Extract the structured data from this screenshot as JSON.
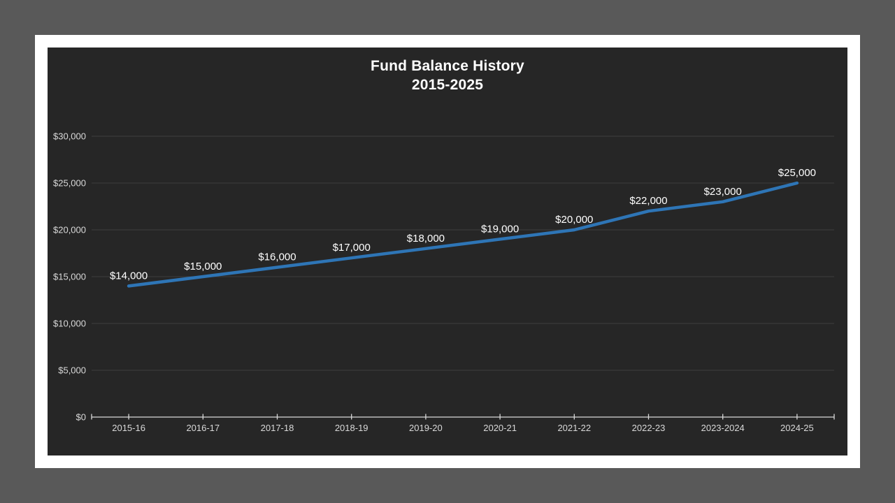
{
  "slide": {
    "canvas_color": "#595959",
    "page_color": "#ffffff",
    "chart_background": "#262626"
  },
  "chart": {
    "title_line1": "Fund Balance History",
    "title_line2": "2015-2025",
    "title_color": "#ffffff",
    "line_color": "#2e75b6",
    "gridline_color": "#3d3d3d",
    "axis_color": "#d9d9d9",
    "axis_label_color": "#d9d9d9",
    "data_label_color": "#ffffff"
  },
  "chart_data": {
    "type": "line",
    "title": "Fund Balance History 2015-2025",
    "categories": [
      "2015-16",
      "2016-17",
      "2017-18",
      "2018-19",
      "2019-20",
      "2020-21",
      "2021-22",
      "2022-23",
      "2023-2024",
      "2024-25"
    ],
    "values": [
      14000,
      15000,
      16000,
      17000,
      18000,
      19000,
      20000,
      22000,
      23000,
      25000
    ],
    "data_labels": [
      "$14,000",
      "$15,000",
      "$16,000",
      "$17,000",
      "$18,000",
      "$19,000",
      "$20,000",
      "$22,000",
      "$23,000",
      "$25,000"
    ],
    "y_ticks": [
      "$0",
      "$5,000",
      "$10,000",
      "$15,000",
      "$20,000",
      "$25,000",
      "$30,000"
    ],
    "y_tick_values": [
      0,
      5000,
      10000,
      15000,
      20000,
      25000,
      30000
    ],
    "xlabel": "",
    "ylabel": "",
    "ylim": [
      0,
      30000
    ],
    "grid": true,
    "legend": "none"
  }
}
